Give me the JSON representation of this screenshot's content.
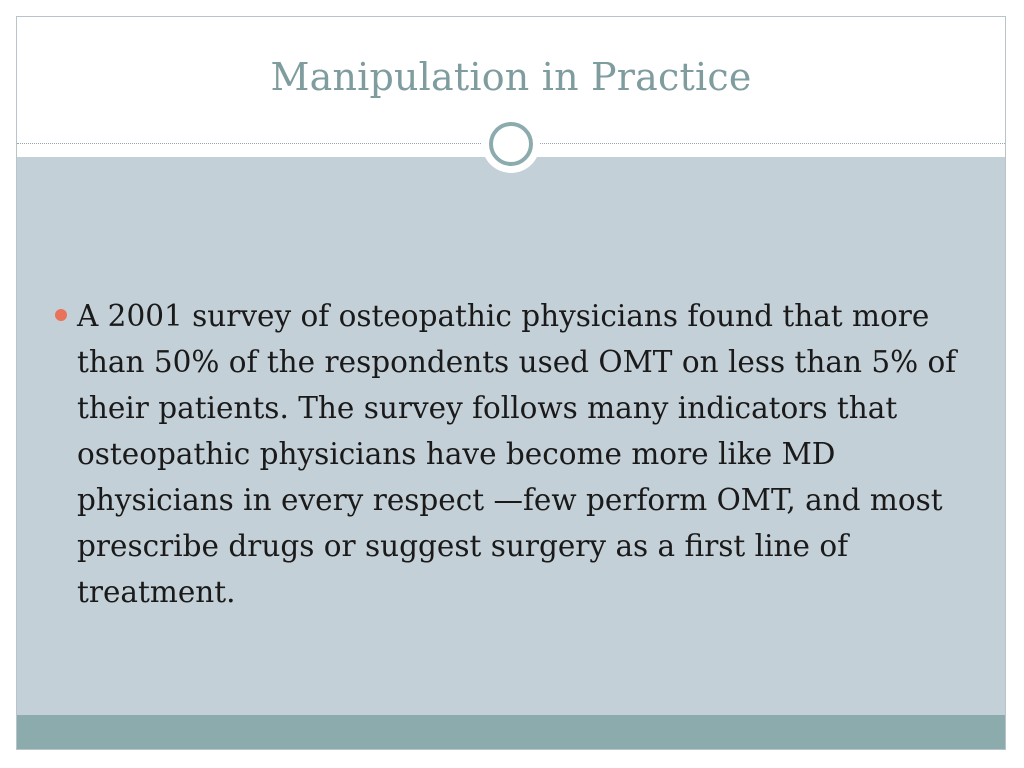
{
  "slide": {
    "title": "Manipulation in Practice",
    "bullets": [
      {
        "text": "A 2001 survey of osteopathic physicians found that more than 50% of the respondents used OMT on less than 5% of their patients. The survey follows many indicators that osteopathic physicians have become more like MD physicians in every respect —few perform OMT, and most prescribe drugs or suggest surgery as a first line of treatment."
      }
    ]
  },
  "colors": {
    "title": "#7f9c9e",
    "content_background": "#c4d0d7",
    "footer_bar": "#8cabac",
    "bullet": "#e8725a",
    "body_text": "#1a1a1a"
  }
}
